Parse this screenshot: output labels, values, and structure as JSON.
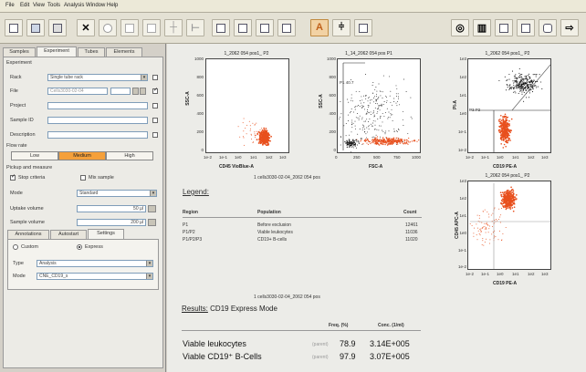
{
  "menu": [
    "File",
    "Edit",
    "View",
    "Tools",
    "Analysis",
    "Window",
    "Help"
  ],
  "panel": {
    "tabs": [
      "Samples",
      "Experiment",
      "Tubes",
      "Elements"
    ],
    "section_experiment": "Experiment",
    "rack_label": "Rack",
    "rack_value": "Single tube rack",
    "file_label": "File",
    "file_value": "Cells3030-02-04",
    "project_label": "Project",
    "sample_id_label": "Sample ID",
    "description_label": "Description",
    "flow_rate_label": "Flow rate",
    "flow_rates": [
      "Low",
      "Medium",
      "High"
    ],
    "flow_rate_selected": "Medium",
    "pickup_label": "Pickup and measure",
    "stop_label": "Stop criteria",
    "mix_label": "Mix sample",
    "mode_label": "Mode",
    "mode_value": "Standard",
    "uptake_label": "Uptake volume",
    "uptake_value": "50 µl",
    "sample_vol_label": "Sample volume",
    "sample_vol_value": "200 µl",
    "subtabs": [
      "Annotations",
      "Autostart",
      "Settings"
    ],
    "radio_custom": "Custom",
    "radio_express": "Express",
    "type_label": "Type",
    "type_value": "Analysis",
    "mode2_label": "Mode",
    "mode2_value": "CNE_CD19_s"
  },
  "report": {
    "plot1_title": "1_2062 054 pos1_ P2",
    "plot1_ylabel": "SSC-A",
    "plot1_xlabel": "CD45 VioBlue-A",
    "plot2_title": "1_14_2062 054 pos P1",
    "plot2_xlabel": "FSC-A",
    "plot2_ylabel": "SSC-A",
    "plot2_gate": "P1 40.7",
    "plot3_title": "1_2062 054 pos1_ P2",
    "plot3_xlabel": "CD19 PE-A",
    "plot3_ylabel": "PI-A",
    "plot3_gate": "P3 P2",
    "plot4_title": "1_2062 054 pos1_ P2",
    "plot4_xlabel": "CD19 PE-A",
    "plot4_ylabel": "CD45 APC-A",
    "file_caption": "1 cells3030-02-04_2062 054 pos",
    "file_caption2": "1 cells3030-02-04_2062 054 pos",
    "y_ticks_lin": [
      "1000",
      "800",
      "600",
      "400",
      "200",
      "0"
    ],
    "x_ticks_lin": [
      "0",
      "250",
      "500",
      "750",
      "1000"
    ],
    "x_ticks_log": [
      "1e-2",
      "1e-1",
      "1e0",
      "1e1",
      "1e2",
      "1e3"
    ],
    "y_ticks_log": [
      "1e3",
      "1e2",
      "1e1",
      "1e0",
      "1e-1",
      "1e-2"
    ],
    "legend_title": "Legend:",
    "legend_headers": [
      "Region",
      "Population",
      "Count"
    ],
    "legend_rows": [
      [
        "P1",
        "Before exclusion",
        "12461"
      ],
      [
        "P1/P2",
        "Viable leukocytes",
        "11036"
      ],
      [
        "P1/P2/P3",
        "CD19+ B-cells",
        "11020"
      ]
    ],
    "results_prefix": "Results:",
    "results_title": "CD19 Express Mode",
    "results_headers": [
      "Freq. (%)",
      "Conc. (1/ml)"
    ],
    "results_rows": [
      {
        "name": "Viable leukocytes",
        "sub": "(parent)",
        "freq": "78.9",
        "conc": "3.14E+005"
      },
      {
        "name": "Viable CD19⁺ B-Cells",
        "sub": "(parent)",
        "freq": "97.9",
        "conc": "3.07E+005"
      }
    ]
  },
  "colors": {
    "accent": "#f5a03a",
    "events_orange": "#e8501e",
    "events_black": "#111111"
  }
}
